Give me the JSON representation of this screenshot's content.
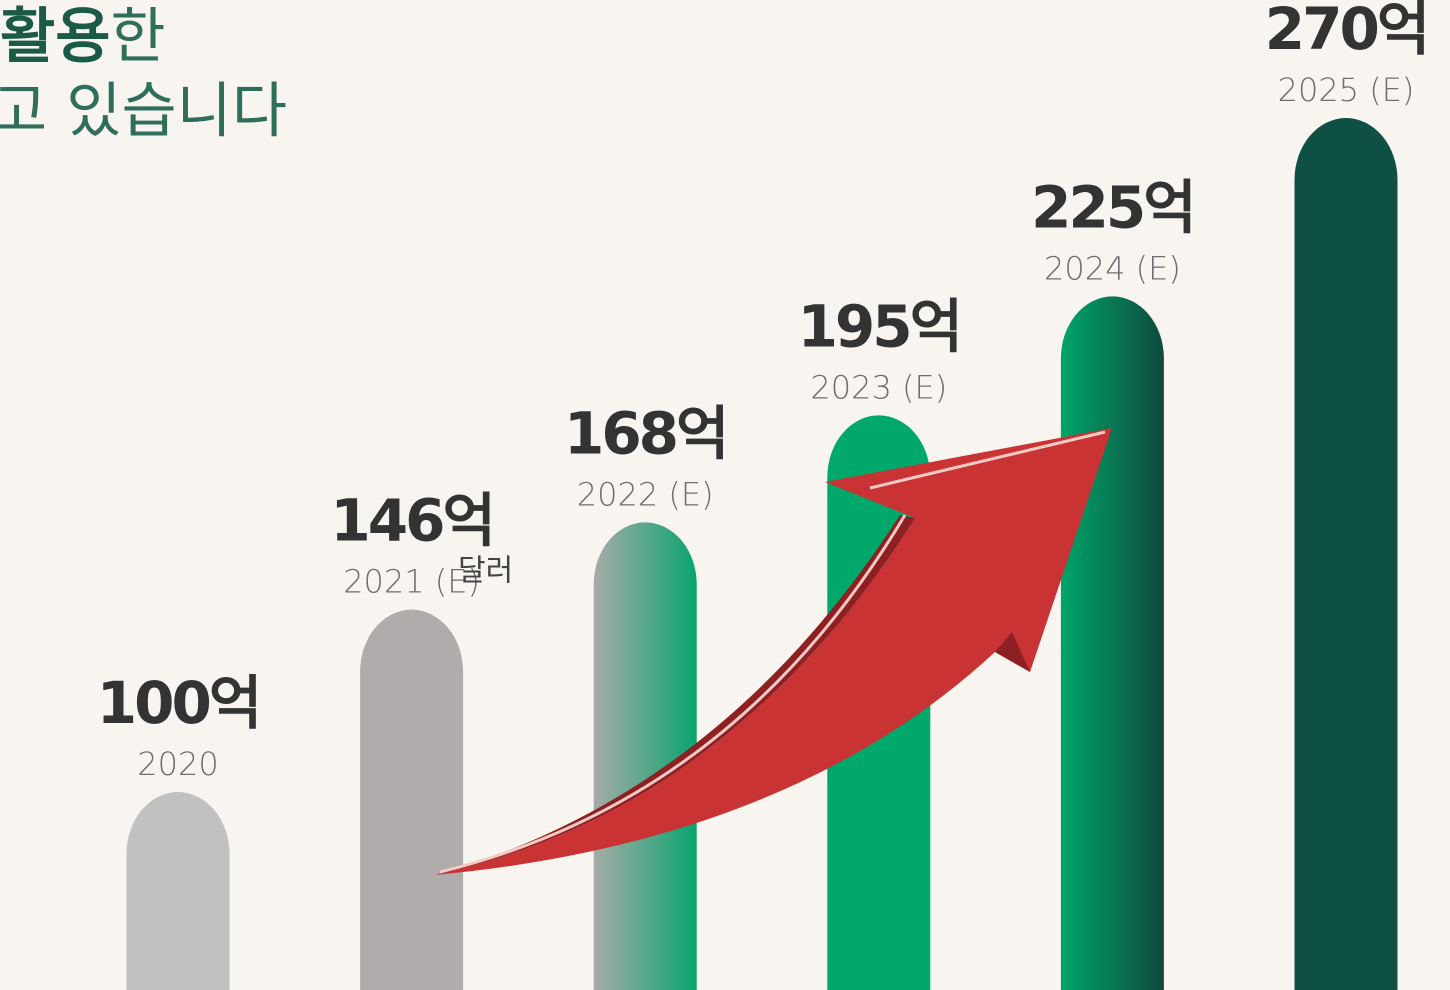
{
  "chart_data": {
    "type": "bar",
    "title": {
      "bold": "활용",
      "rest": "한",
      "line2": "고 있습니다"
    },
    "categories": [
      "2020",
      "2021 (E)",
      "2022 (E)",
      "2023 (E)",
      "2024 (E)",
      "2025 (E)"
    ],
    "values": [
      100,
      146,
      168,
      195,
      225,
      270
    ],
    "value_labels": [
      "100억",
      "146억",
      "168억",
      "195억",
      "225억",
      "270억"
    ],
    "unit": "달러",
    "colors": [
      "#c1c1c1",
      "#afacab",
      [
        "#a5aba7",
        "#0aa56e"
      ],
      "#00a96b",
      [
        "#00a56a",
        "#0f4a3e"
      ],
      "#0f5045"
    ]
  }
}
